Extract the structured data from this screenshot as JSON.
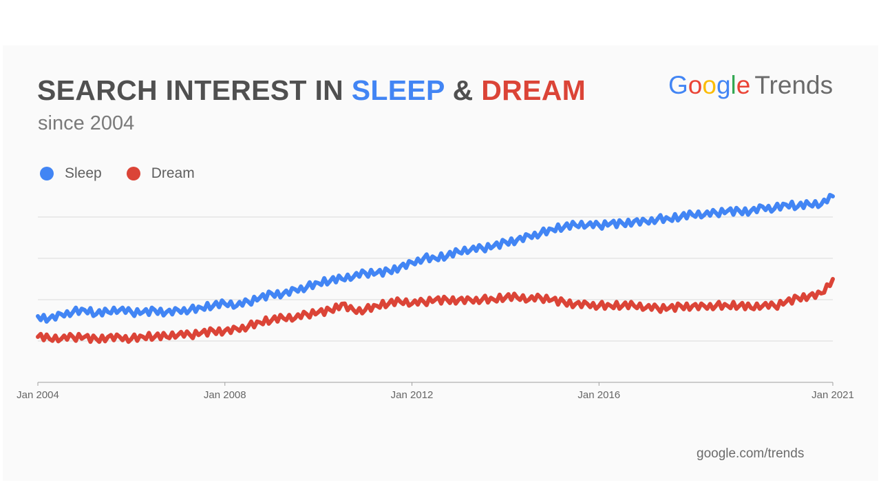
{
  "header": {
    "title_prefix": "SEARCH INTEREST IN ",
    "title_sleep": "SLEEP",
    "title_amp": " & ",
    "title_dream": "DREAM",
    "subtitle": "since 2004"
  },
  "brand": {
    "logo_letters": [
      {
        "ch": "G",
        "color": "#4285f4"
      },
      {
        "ch": "o",
        "color": "#ea4335"
      },
      {
        "ch": "o",
        "color": "#fbbc05"
      },
      {
        "ch": "g",
        "color": "#4285f4"
      },
      {
        "ch": "l",
        "color": "#34a853"
      },
      {
        "ch": "e",
        "color": "#ea4335"
      }
    ],
    "product": "Trends"
  },
  "footer": {
    "source": "google.com/trends"
  },
  "chart_data": {
    "type": "line",
    "x_ticks": [
      "Jan 2004",
      "Jan 2008",
      "Jan 2012",
      "Jan 2016",
      "Jan 2021"
    ],
    "x_range": [
      2004.0,
      2021.0
    ],
    "y_range": [
      0,
      100
    ],
    "grid": true,
    "legend_position": "top-left",
    "series": [
      {
        "name": "Sleep",
        "color": "#4285f4",
        "x": [
          2004.0,
          2004.25,
          2004.5,
          2004.75,
          2005.0,
          2005.25,
          2005.5,
          2005.75,
          2006.0,
          2006.25,
          2006.5,
          2006.75,
          2007.0,
          2007.25,
          2007.5,
          2007.75,
          2008.0,
          2008.25,
          2008.5,
          2008.75,
          2009.0,
          2009.25,
          2009.5,
          2009.75,
          2010.0,
          2010.25,
          2010.5,
          2010.75,
          2011.0,
          2011.25,
          2011.5,
          2011.75,
          2012.0,
          2012.25,
          2012.5,
          2012.75,
          2013.0,
          2013.25,
          2013.5,
          2013.75,
          2014.0,
          2014.25,
          2014.5,
          2014.75,
          2015.0,
          2015.25,
          2015.5,
          2015.75,
          2016.0,
          2016.25,
          2016.5,
          2016.75,
          2017.0,
          2017.25,
          2017.5,
          2017.75,
          2018.0,
          2018.25,
          2018.5,
          2018.75,
          2019.0,
          2019.25,
          2019.5,
          2019.75,
          2020.0,
          2020.25,
          2020.5,
          2020.75,
          2021.0
        ],
        "values": [
          32,
          31,
          33,
          34,
          35,
          33,
          34,
          35,
          34,
          34,
          35,
          34,
          35,
          35,
          36,
          37,
          38,
          37,
          39,
          41,
          43,
          43,
          45,
          46,
          48,
          49,
          50,
          51,
          53,
          53,
          54,
          56,
          58,
          60,
          60,
          61,
          63,
          64,
          65,
          66,
          68,
          69,
          71,
          72,
          74,
          75,
          76,
          76,
          76,
          77,
          77,
          78,
          78,
          79,
          79,
          80,
          81,
          81,
          82,
          83,
          83,
          83,
          85,
          84,
          86,
          85,
          86,
          86,
          90
        ]
      },
      {
        "name": "Dream",
        "color": "#db4437",
        "x": [
          2004.0,
          2004.25,
          2004.5,
          2004.75,
          2005.0,
          2005.25,
          2005.5,
          2005.75,
          2006.0,
          2006.25,
          2006.5,
          2006.75,
          2007.0,
          2007.25,
          2007.5,
          2007.75,
          2008.0,
          2008.25,
          2008.5,
          2008.75,
          2009.0,
          2009.25,
          2009.5,
          2009.75,
          2010.0,
          2010.25,
          2010.5,
          2010.75,
          2011.0,
          2011.25,
          2011.5,
          2011.75,
          2012.0,
          2012.25,
          2012.5,
          2012.75,
          2013.0,
          2013.25,
          2013.5,
          2013.75,
          2014.0,
          2014.25,
          2014.5,
          2014.75,
          2015.0,
          2015.25,
          2015.5,
          2015.75,
          2016.0,
          2016.25,
          2016.5,
          2016.75,
          2017.0,
          2017.25,
          2017.5,
          2017.75,
          2018.0,
          2018.25,
          2018.5,
          2018.75,
          2019.0,
          2019.25,
          2019.5,
          2019.75,
          2020.0,
          2020.25,
          2020.5,
          2020.75,
          2021.0
        ],
        "values": [
          22,
          21,
          21,
          22,
          22,
          21,
          22,
          22,
          21,
          22,
          22,
          22,
          23,
          23,
          24,
          25,
          25,
          26,
          27,
          29,
          30,
          31,
          31,
          33,
          34,
          35,
          38,
          35,
          35,
          37,
          38,
          39,
          38,
          39,
          40,
          40,
          40,
          40,
          40,
          40,
          41,
          41,
          40,
          41,
          40,
          39,
          38,
          38,
          37,
          37,
          37,
          37,
          36,
          36,
          36,
          37,
          37,
          37,
          37,
          37,
          37,
          36,
          37,
          37,
          39,
          41,
          42,
          43,
          50
        ]
      }
    ]
  }
}
